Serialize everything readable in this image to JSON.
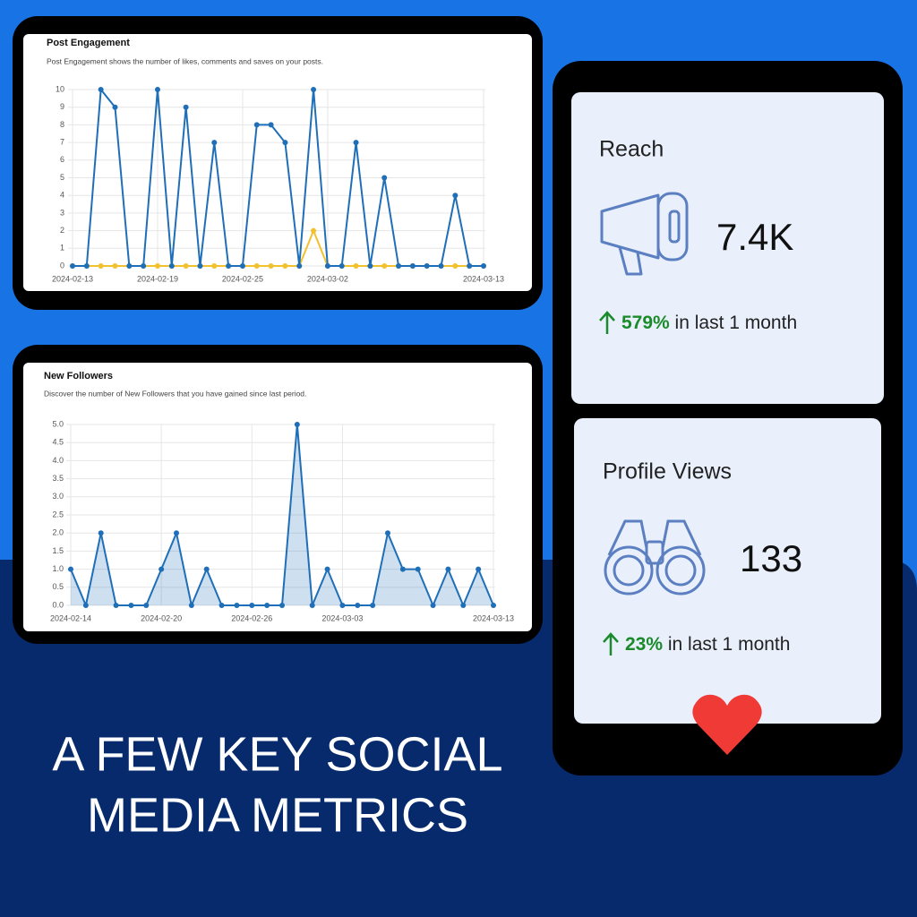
{
  "chart_data": [
    {
      "type": "line",
      "title": "Post Engagement",
      "subtitle": "Post Engagement shows the number of likes, comments and saves on your posts.",
      "categories": [
        "2024-02-13",
        null,
        null,
        null,
        null,
        null,
        "2024-02-19",
        null,
        null,
        null,
        null,
        null,
        "2024-02-25",
        null,
        null,
        null,
        null,
        null,
        "2024-03-02",
        null,
        null,
        null,
        null,
        null,
        null,
        null,
        null,
        null,
        null,
        "2024-03-13"
      ],
      "series": [
        {
          "color": "#1f6fb8",
          "values": [
            0,
            0,
            10,
            9,
            0,
            0,
            10,
            0,
            9,
            0,
            7,
            0,
            0,
            8,
            8,
            7,
            0,
            10,
            0,
            0,
            7,
            0,
            5,
            0,
            0,
            0,
            0,
            4,
            0,
            0
          ]
        },
        {
          "color": "#f2c12e",
          "values": [
            0,
            0,
            0,
            0,
            0,
            0,
            0,
            0,
            0,
            0,
            0,
            0,
            0,
            0,
            0,
            0,
            0,
            2,
            0,
            0,
            0,
            0,
            0,
            0,
            0,
            0,
            0,
            0,
            0,
            0
          ]
        }
      ],
      "ylim": [
        0,
        10
      ],
      "yticks": [
        0,
        1,
        2,
        3,
        4,
        5,
        6,
        7,
        8,
        9,
        10
      ],
      "grid": true
    },
    {
      "type": "area",
      "title": "New Followers",
      "subtitle": "Discover the number of New Followers that you have gained since last period.",
      "categories": [
        "2024-02-14",
        null,
        null,
        null,
        null,
        null,
        "2024-02-20",
        null,
        null,
        null,
        null,
        null,
        "2024-02-26",
        null,
        null,
        null,
        null,
        null,
        "2024-03-03",
        null,
        null,
        null,
        null,
        null,
        null,
        null,
        null,
        null,
        "2024-03-13"
      ],
      "series": [
        {
          "color": "#1f6fb8",
          "values": [
            1,
            0,
            2,
            0,
            0,
            0,
            1,
            2,
            0,
            1,
            0,
            0,
            0,
            0,
            0,
            5,
            0,
            1,
            0,
            0,
            0,
            2,
            1,
            1,
            0,
            1,
            0,
            1,
            0
          ]
        }
      ],
      "ylim": [
        0,
        5
      ],
      "yticks": [
        {
          "value": 0,
          "label": "0.0"
        },
        {
          "value": 0.5,
          "label": "0.5"
        },
        {
          "value": 1,
          "label": "1.0"
        },
        {
          "value": 1.5,
          "label": "1.5"
        },
        {
          "value": 2,
          "label": "2.0"
        },
        {
          "value": 2.5,
          "label": "2.5"
        },
        {
          "value": 3,
          "label": "3.0"
        },
        {
          "value": 3.5,
          "label": "3.5"
        },
        {
          "value": 4,
          "label": "4.0"
        },
        {
          "value": 4.5,
          "label": "4.5"
        },
        {
          "value": 5,
          "label": "5.0"
        }
      ],
      "grid": true
    }
  ],
  "cards": [
    {
      "title": "Reach",
      "value": "7.4K",
      "change": "579%",
      "period": " in last 1 month"
    },
    {
      "title": "Profile Views",
      "value": "133",
      "change": "23%",
      "period": " in last 1 month"
    }
  ],
  "headline": [
    "A FEW KEY SOCIAL",
    "MEDIA METRICS"
  ]
}
